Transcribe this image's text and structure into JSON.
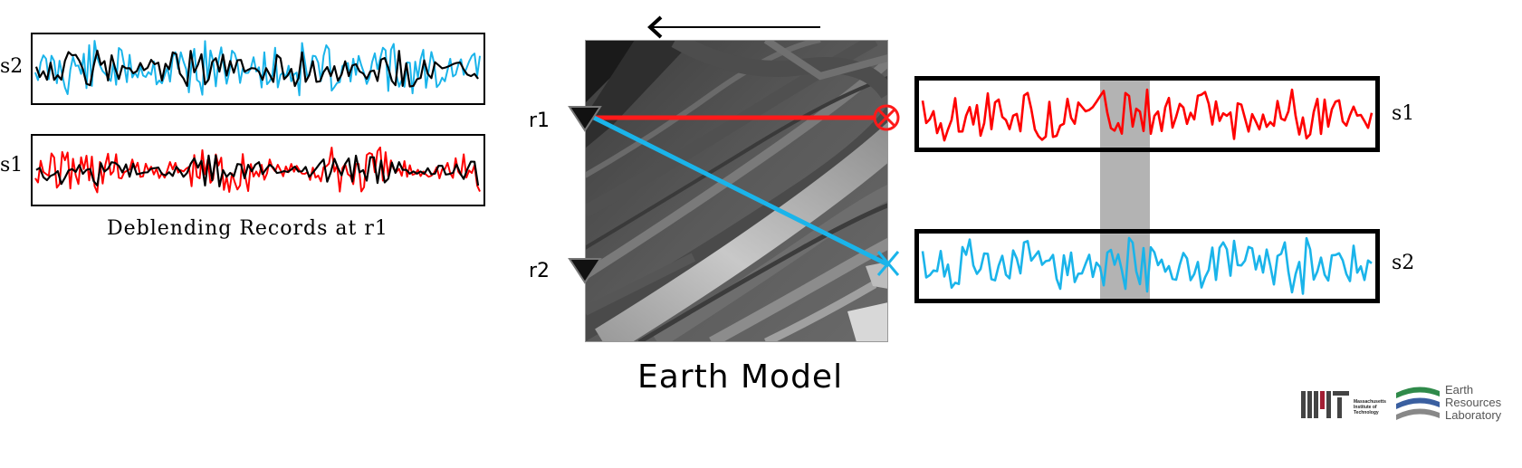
{
  "left_panel": {
    "traces": [
      {
        "label": "s2",
        "overlay_color": "#1ab4ea",
        "base_color": "#000000"
      },
      {
        "label": "s1",
        "overlay_color": "#ff0000",
        "base_color": "#000000"
      }
    ],
    "caption": "Deblending Records at r1"
  },
  "earth_model": {
    "caption": "Earth Model",
    "receivers": [
      {
        "label": "r1"
      },
      {
        "label": "r2"
      }
    ],
    "rays": [
      {
        "color": "#ff1a1a",
        "source_symbol": "circle-cross"
      },
      {
        "color": "#1ab4ea",
        "source_symbol": "x"
      }
    ],
    "direction_arrow": "left"
  },
  "right_panel": {
    "traces": [
      {
        "label": "s1",
        "color": "#ff0000"
      },
      {
        "label": "s2",
        "color": "#1ab4ea"
      }
    ],
    "highlight_color": "#b3b3b3"
  },
  "logos": {
    "mit": {
      "letters": "MIT",
      "lines": [
        "Massachusetts",
        "Institute of",
        "Technology"
      ]
    },
    "erl": {
      "lines": [
        "Earth",
        "Resources",
        "Laboratory"
      ]
    }
  }
}
